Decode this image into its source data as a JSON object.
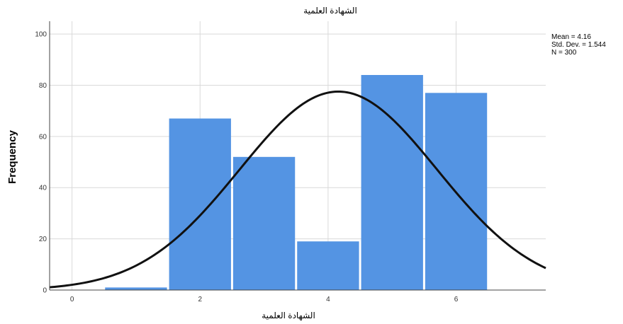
{
  "chart_data": {
    "type": "bar",
    "title": "الشهادة العلمية",
    "xlabel": "الشهادة العلمية",
    "ylabel": "Frequency",
    "x_range": [
      -0.35,
      7.4
    ],
    "ylim": [
      0,
      105
    ],
    "x_ticks": [
      0,
      2,
      4,
      6
    ],
    "y_ticks": [
      0,
      20,
      40,
      60,
      80,
      100
    ],
    "bin_width": 1,
    "bins": [
      {
        "center": 1,
        "value": 1
      },
      {
        "center": 2,
        "value": 67
      },
      {
        "center": 3,
        "value": 52
      },
      {
        "center": 4,
        "value": 19
      },
      {
        "center": 5,
        "value": 84
      },
      {
        "center": 6,
        "value": 77
      }
    ],
    "normal_curve": {
      "mean": 4.16,
      "std_dev": 1.544,
      "n": 300
    },
    "stats": [
      "Mean = 4.16",
      "Std. Dev. = 1.544",
      "N = 300"
    ],
    "grid": true,
    "bar_color": "#5494e3",
    "curve_color": "#111111"
  }
}
